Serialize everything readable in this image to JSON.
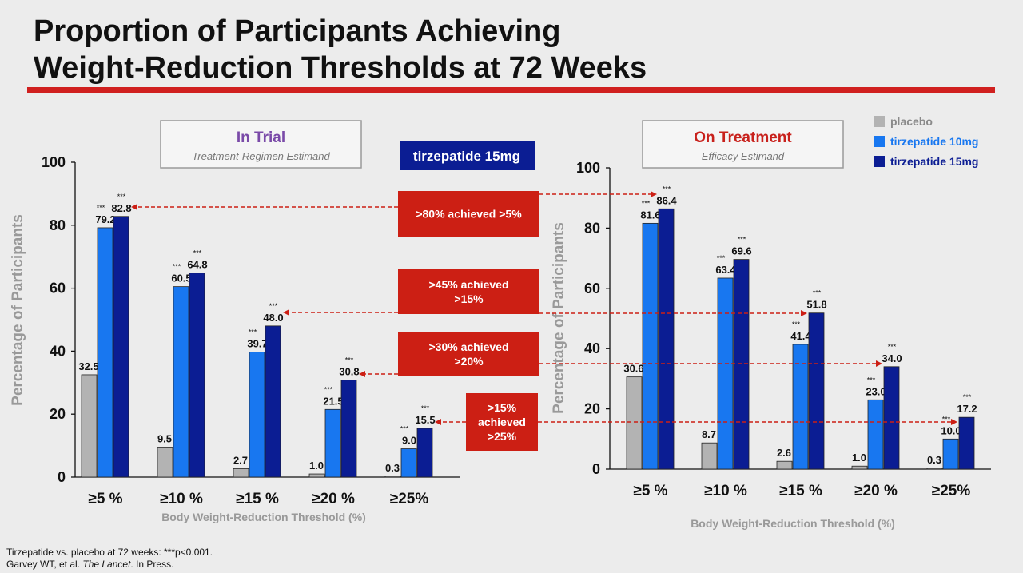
{
  "title": {
    "line1": "Proportion of Participants Achieving",
    "line2": "Weight-Reduction Thresholds at 72 Weeks"
  },
  "colors": {
    "placebo": "#b3b3b3",
    "tirzepatide_10mg": "#1877f0",
    "tirzepatide_15mg": "#0b1d93",
    "accent_red": "#d0201f",
    "callout_red": "#cc1f14",
    "in_trial_title": "#7a4aa8",
    "on_treatment_title": "#c8211c"
  },
  "legend": {
    "items": [
      {
        "label": "placebo",
        "color": "#b3b3b3",
        "text_color": "#8a8a8a"
      },
      {
        "label": "tirzepatide 10mg",
        "color": "#1877f0",
        "text_color": "#1877f0"
      },
      {
        "label": "tirzepatide 15mg",
        "color": "#0b1d93",
        "text_color": "#0b1d93"
      }
    ]
  },
  "badge": {
    "label": "tirzepatide 15mg"
  },
  "callouts": [
    {
      "lines": [
        ">80% achieved >5%"
      ]
    },
    {
      "lines": [
        ">45% achieved",
        ">15%"
      ]
    },
    {
      "lines": [
        ">30% achieved",
        ">20%"
      ]
    },
    {
      "lines": [
        ">15%",
        "achieved",
        ">25%"
      ]
    }
  ],
  "chart_data": [
    {
      "type": "bar",
      "panel_title": "In Trial",
      "panel_subtitle": "Treatment-Regimen Estimand",
      "xlabel": "Body Weight-Reduction Threshold (%)",
      "ylabel": "Percentage of Participants",
      "ylim": [
        0,
        100
      ],
      "yticks": [
        0,
        20,
        40,
        60,
        80,
        100
      ],
      "categories": [
        "≥5 %",
        "≥10 %",
        "≥15 %",
        "≥20 %",
        "≥25%"
      ],
      "series": [
        {
          "name": "placebo",
          "values": [
            32.5,
            9.5,
            2.7,
            1.0,
            0.3
          ],
          "labels": [
            "32.5",
            "9.5",
            "2.7",
            "1.0",
            "0.3"
          ]
        },
        {
          "name": "tirzepatide 10mg",
          "values": [
            79.2,
            60.5,
            39.7,
            21.5,
            9.0
          ],
          "labels": [
            "79.2",
            "60.5",
            "39.7",
            "21.5",
            "9.0"
          ]
        },
        {
          "name": "tirzepatide 15mg",
          "values": [
            82.8,
            64.8,
            48.0,
            30.8,
            15.5
          ],
          "labels": [
            "82.8",
            "64.8",
            "48.0",
            "30.8",
            "15.5"
          ]
        }
      ],
      "significance_marker": "***",
      "grid": false
    },
    {
      "type": "bar",
      "panel_title": "On Treatment",
      "panel_subtitle": "Efficacy Estimand",
      "xlabel": "Body Weight-Reduction Threshold (%)",
      "ylabel": "Percentage of Participants",
      "ylim": [
        0,
        100
      ],
      "yticks": [
        0,
        20,
        40,
        60,
        80,
        100
      ],
      "categories": [
        "≥5 %",
        "≥10 %",
        "≥15 %",
        "≥20 %",
        "≥25%"
      ],
      "series": [
        {
          "name": "placebo",
          "values": [
            30.6,
            8.7,
            2.6,
            1.0,
            0.3
          ],
          "labels": [
            "30.6",
            "8.7",
            "2.6",
            "1.0",
            "0.3"
          ]
        },
        {
          "name": "tirzepatide 10mg",
          "values": [
            81.6,
            63.4,
            41.4,
            23.0,
            10.0
          ],
          "labels": [
            "81.6",
            "63.4",
            "41.4",
            "23.0",
            "10.0"
          ]
        },
        {
          "name": "tirzepatide 15mg",
          "values": [
            86.4,
            69.6,
            51.8,
            34.0,
            17.2
          ],
          "labels": [
            "86.4",
            "69.6",
            "51.8",
            "34.0",
            "17.2"
          ]
        }
      ],
      "significance_marker": "***",
      "grid": false
    }
  ],
  "footnote": {
    "line1": "Tirzepatide vs. placebo at 72 weeks: ***p<0.001.",
    "line2_before": "Garvey WT, et al. ",
    "line2_journal": "The Lancet",
    "line2_after": ". In Press."
  }
}
